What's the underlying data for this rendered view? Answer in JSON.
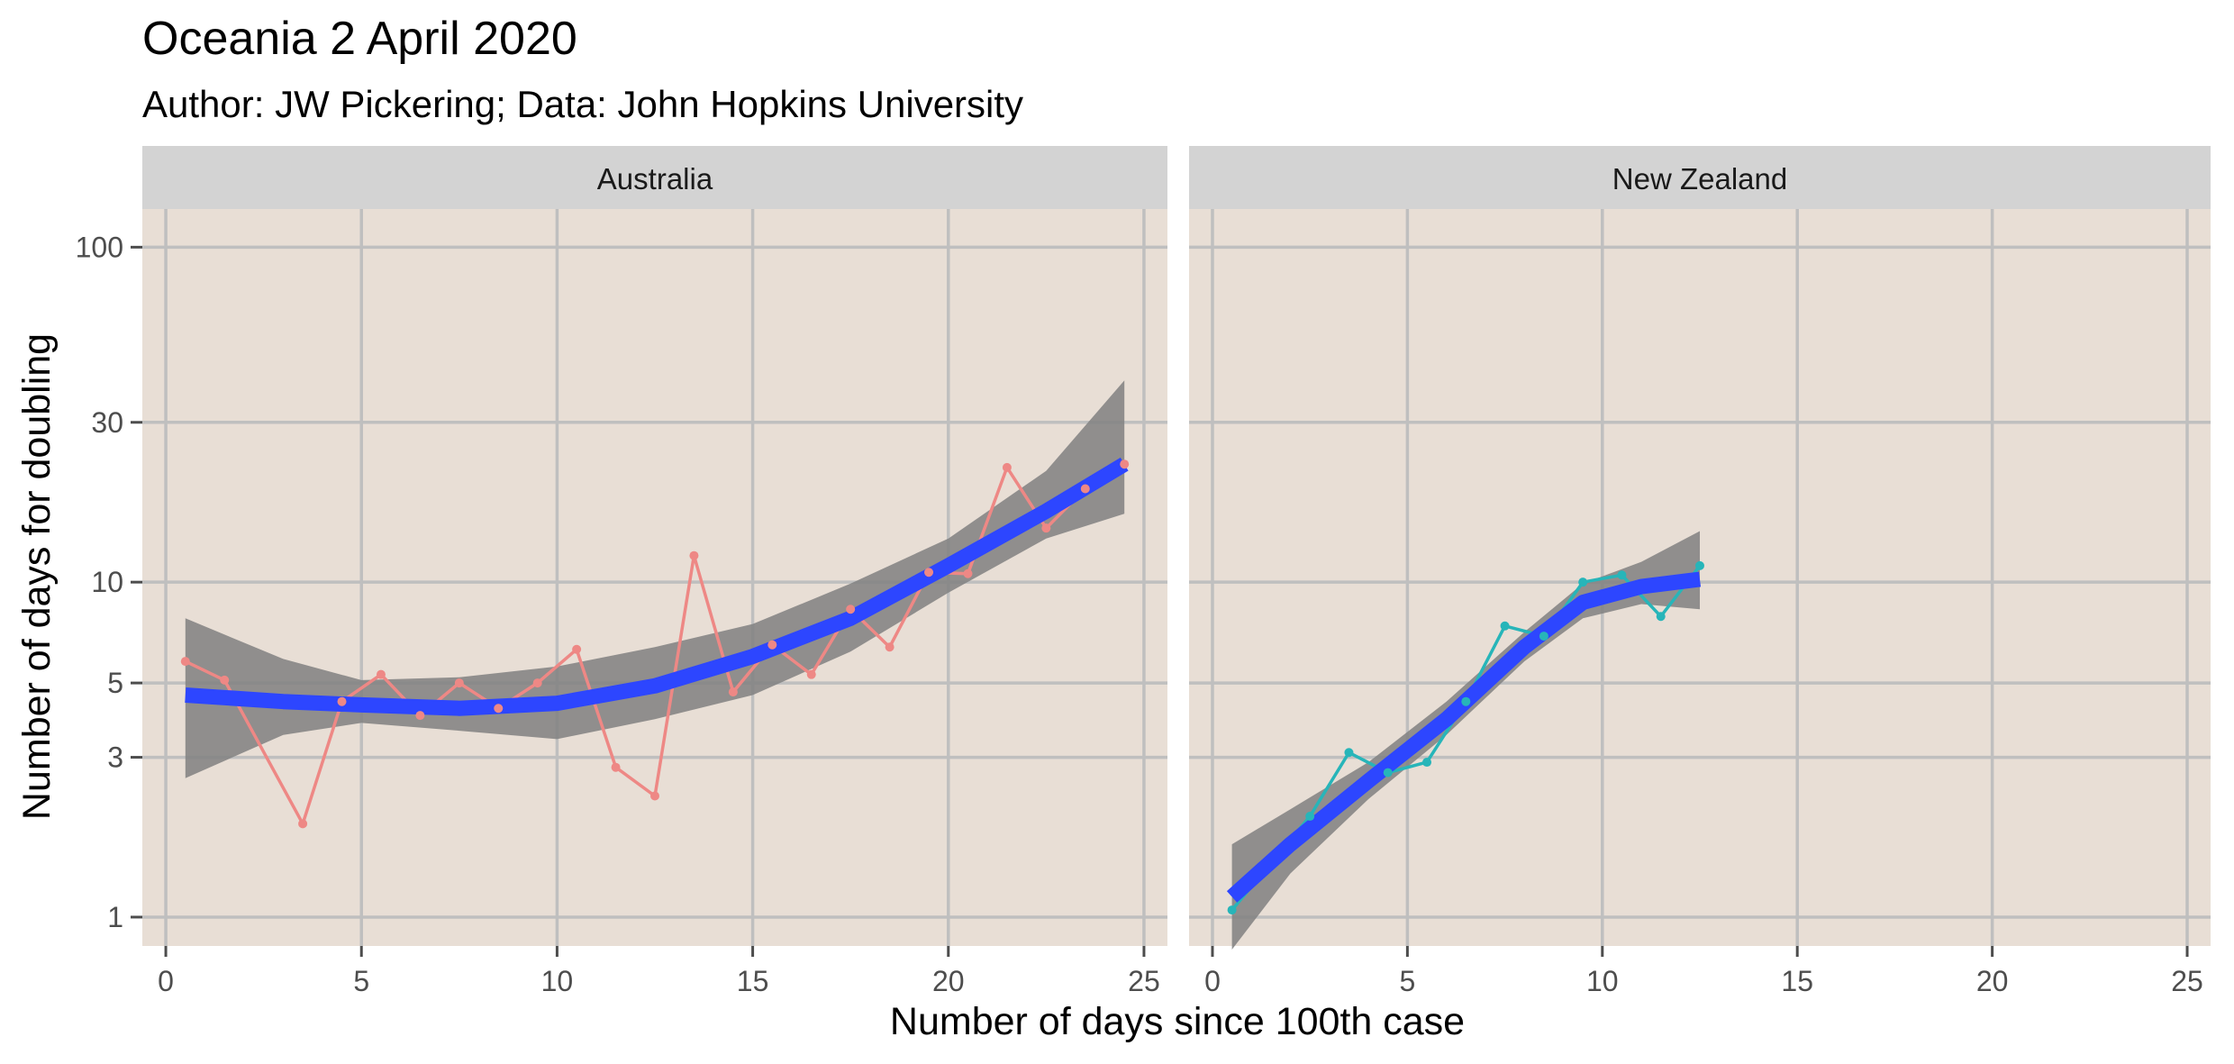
{
  "chart_data": {
    "type": "line",
    "title": "Oceania 2 April 2020",
    "subtitle": "Author: JW Pickering; Data: John Hopkins University",
    "xlabel": "Number of days since 100th case",
    "ylabel": "Number of days for doubling",
    "xlim": [
      -0.6,
      25.6
    ],
    "ylim_log": [
      0.82,
      130
    ],
    "y_scale": "log10",
    "x_ticks": [
      0,
      5,
      10,
      15,
      20,
      25
    ],
    "x_tick_labels": [
      "0",
      "5",
      "10",
      "15",
      "20",
      "25"
    ],
    "y_ticks": [
      1,
      3,
      5,
      10,
      30,
      100
    ],
    "y_tick_labels": [
      "1",
      "3",
      "5",
      "10",
      "30",
      "100"
    ],
    "grid": true,
    "panel_background": "#e8ded5",
    "strip_background": "#d3d3d3",
    "smooth_color": "#2d46ff",
    "ribbon_color": "#808080",
    "panels": [
      {
        "name": "Australia",
        "color": "#ee8885",
        "points": [
          [
            0.5,
            5.8
          ],
          [
            1.5,
            5.1
          ],
          [
            3.5,
            1.9
          ],
          [
            4.5,
            4.4
          ],
          [
            5.5,
            5.3
          ],
          [
            6.5,
            4.0
          ],
          [
            7.5,
            5.0
          ],
          [
            8.5,
            4.2
          ],
          [
            9.5,
            5.0
          ],
          [
            10.5,
            6.3
          ],
          [
            11.5,
            2.8
          ],
          [
            12.5,
            2.3
          ],
          [
            13.5,
            12.0
          ],
          [
            14.5,
            4.7
          ],
          [
            15.5,
            6.5
          ],
          [
            16.5,
            5.3
          ],
          [
            17.5,
            8.3
          ],
          [
            18.5,
            6.4
          ],
          [
            19.5,
            10.7
          ],
          [
            20.5,
            10.6
          ],
          [
            21.5,
            22.0
          ],
          [
            22.5,
            14.5
          ],
          [
            23.5,
            19.0
          ],
          [
            24.5,
            22.5
          ]
        ],
        "smooth": [
          [
            0.5,
            4.6
          ],
          [
            3,
            4.4
          ],
          [
            5,
            4.3
          ],
          [
            7.5,
            4.2
          ],
          [
            10,
            4.35
          ],
          [
            12.5,
            4.9
          ],
          [
            15,
            6.0
          ],
          [
            17.5,
            7.8
          ],
          [
            20,
            11.2
          ],
          [
            22.5,
            16.3
          ],
          [
            24.5,
            22.5
          ]
        ],
        "ribbon_low": [
          [
            0.5,
            2.6
          ],
          [
            3,
            3.5
          ],
          [
            5,
            3.8
          ],
          [
            7.5,
            3.6
          ],
          [
            10,
            3.4
          ],
          [
            12.5,
            3.9
          ],
          [
            15,
            4.6
          ],
          [
            17.5,
            6.2
          ],
          [
            20,
            9.3
          ],
          [
            22.5,
            13.5
          ],
          [
            24.5,
            16.0
          ]
        ],
        "ribbon_high": [
          [
            0.5,
            7.8
          ],
          [
            3,
            5.9
          ],
          [
            5,
            5.1
          ],
          [
            7.5,
            5.2
          ],
          [
            10,
            5.6
          ],
          [
            12.5,
            6.4
          ],
          [
            15,
            7.5
          ],
          [
            17.5,
            9.9
          ],
          [
            20,
            13.5
          ],
          [
            22.5,
            21.5
          ],
          [
            24.5,
            40.0
          ]
        ]
      },
      {
        "name": "New Zealand",
        "color": "#27b5b9",
        "points": [
          [
            0.5,
            1.05
          ],
          [
            2.5,
            2.0
          ],
          [
            3.5,
            3.1
          ],
          [
            4.5,
            2.7
          ],
          [
            5.5,
            2.9
          ],
          [
            6.5,
            4.4
          ],
          [
            7.5,
            7.4
          ],
          [
            8.5,
            6.9
          ],
          [
            9.5,
            10.0
          ],
          [
            10.5,
            10.5
          ],
          [
            11.5,
            7.9
          ],
          [
            12.5,
            11.2
          ]
        ],
        "smooth": [
          [
            0.5,
            1.15
          ],
          [
            2,
            1.65
          ],
          [
            4,
            2.55
          ],
          [
            6,
            3.9
          ],
          [
            8,
            6.4
          ],
          [
            9.5,
            8.7
          ],
          [
            11,
            9.7
          ],
          [
            12.5,
            10.2
          ]
        ],
        "ribbon_low": [
          [
            0.5,
            0.8
          ],
          [
            2,
            1.35
          ],
          [
            4,
            2.25
          ],
          [
            6,
            3.5
          ],
          [
            8,
            5.8
          ],
          [
            9.5,
            7.8
          ],
          [
            11,
            8.6
          ],
          [
            12.5,
            8.3
          ]
        ],
        "ribbon_high": [
          [
            0.5,
            1.65
          ],
          [
            2,
            2.1
          ],
          [
            4,
            2.9
          ],
          [
            6,
            4.4
          ],
          [
            8,
            7.1
          ],
          [
            9.5,
            9.9
          ],
          [
            11,
            11.5
          ],
          [
            12.5,
            14.2
          ]
        ]
      }
    ]
  }
}
